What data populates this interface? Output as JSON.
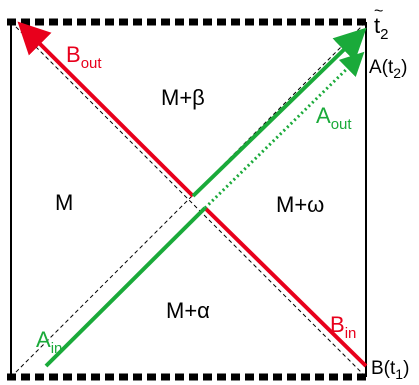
{
  "regions": {
    "left": "M",
    "top": "M+β",
    "right": "M+ω",
    "bottom": "M+α"
  },
  "rays": {
    "b_out": {
      "base": "B",
      "sub": "out",
      "color": "#e8001c"
    },
    "b_in": {
      "base": "B",
      "sub": "in",
      "color": "#e8001c"
    },
    "a_out": {
      "base": "A",
      "sub": "out",
      "color": "#1aaa3a"
    },
    "a_in": {
      "base": "A",
      "sub": "in",
      "color": "#1aaa3a"
    }
  },
  "corner_labels": {
    "t2": {
      "base": "t",
      "sub": "2",
      "accent": "~"
    },
    "a_t2": {
      "pre": "A(t",
      "sub": "2",
      "post": ")"
    },
    "b_t1": {
      "pre": "B(t",
      "sub": "1",
      "post": ")"
    }
  },
  "colors": {
    "frame": "#000000",
    "red": "#e8001c",
    "green": "#1aaa3a",
    "dashed_diagonal": "#000000"
  }
}
